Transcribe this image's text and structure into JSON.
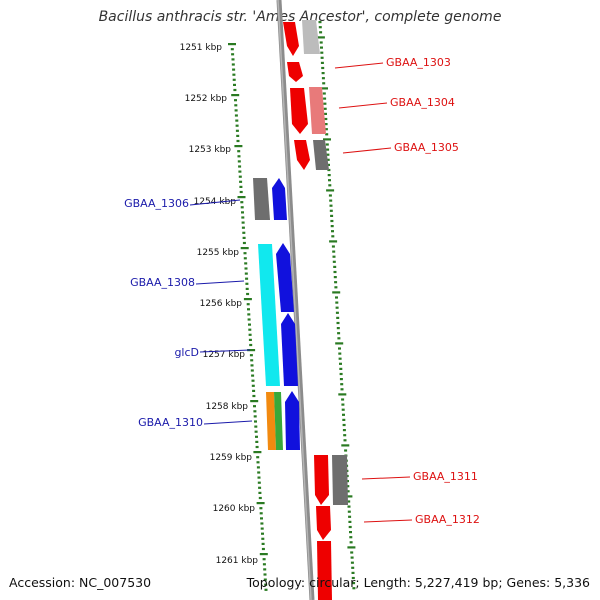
{
  "title": "Bacillus anthracis str. 'Ames Ancestor', complete genome",
  "accession": "Accession: NC_007530",
  "topology": "Topology: circular; Length: 5,227,419 bp; Genes: 5,336",
  "colors": {
    "tick": "#2a7a22",
    "reverse_label": "#dd1111",
    "forward_label": "#1a1aaa",
    "backbone": "#8c8c8c",
    "gene_red": "#ee0000",
    "gene_blue": "#1111dd",
    "gene_grey": "#6e6e6e",
    "gene_cyan": "#11e8ee",
    "gene_orange": "#f28a10",
    "gene_green": "#3aa83a",
    "gene_pink": "#e87a7a",
    "gene_lightgrey": "#bcbcbc"
  },
  "scale_labels": [
    "1251 kbp",
    "1252 kbp",
    "1253 kbp",
    "1254 kbp",
    "1255 kbp",
    "1256 kbp",
    "1257 kbp",
    "1258 kbp",
    "1259 kbp",
    "1260 kbp",
    "1261 kbp"
  ],
  "gene_labels_reverse": [
    "GBAA_1303",
    "GBAA_1304",
    "GBAA_1305",
    "GBAA_1311",
    "GBAA_1312"
  ],
  "gene_labels_forward": [
    "GBAA_1306",
    "GBAA_1308",
    "glcD",
    "GBAA_1310"
  ]
}
